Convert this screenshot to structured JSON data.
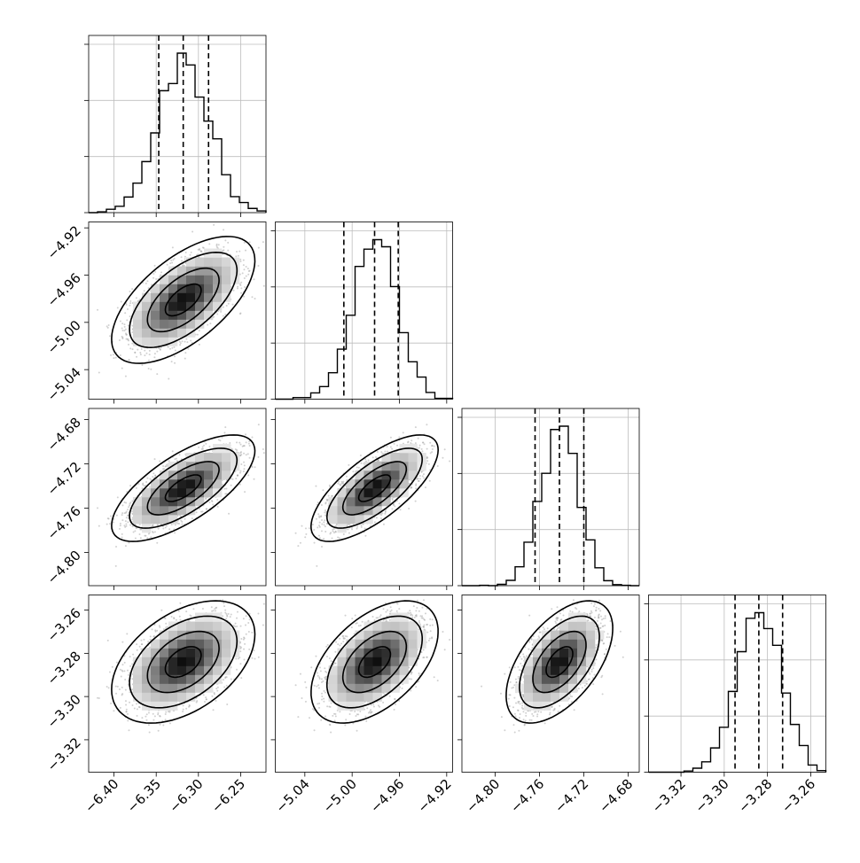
{
  "chart_data": {
    "type": "corner",
    "parameters": [
      {
        "range": [
          -6.43,
          -6.22
        ],
        "ticks": [
          -6.4,
          -6.35,
          -6.3,
          -6.25
        ],
        "tick_labels": [
          "−6.40",
          "−6.35",
          "−6.30",
          "−6.25"
        ],
        "mean": -6.318,
        "sd": 0.03,
        "quantiles": [
          -6.347,
          -6.318,
          -6.288
        ]
      },
      {
        "range": [
          -5.065,
          -4.915
        ],
        "ticks": [
          -5.04,
          -5.0,
          -4.96,
          -4.92
        ],
        "tick_labels": [
          "−5.04",
          "−5.00",
          "−4.96",
          "−4.92"
        ],
        "mean": -4.981,
        "sd": 0.019,
        "quantiles": [
          -5.007,
          -4.981,
          -4.961
        ]
      },
      {
        "range": [
          -4.83,
          -4.67
        ],
        "ticks": [
          -4.8,
          -4.76,
          -4.72,
          -4.68
        ],
        "tick_labels": [
          "−4.80",
          "−4.76",
          "−4.72",
          "−4.68"
        ],
        "mean": -4.742,
        "sd": 0.017,
        "quantiles": [
          -4.764,
          -4.742,
          -4.72
        ]
      },
      {
        "range": [
          -3.335,
          -3.253
        ],
        "ticks": [
          -3.32,
          -3.3,
          -3.28,
          -3.26
        ],
        "tick_labels": [
          "−3.32",
          "−3.30",
          "−3.28",
          "−3.26"
        ],
        "mean": -3.284,
        "sd": 0.01,
        "quantiles": [
          -3.295,
          -3.284,
          -3.273
        ]
      }
    ],
    "correlations": [
      [
        1,
        0.62,
        0.7,
        0.45
      ],
      [
        0.62,
        1,
        0.72,
        0.5
      ],
      [
        0.7,
        0.72,
        1,
        0.55
      ],
      [
        0.45,
        0.5,
        0.55,
        1
      ]
    ],
    "contour_levels_sigma": [
      0.5,
      1.0,
      1.5,
      2.0
    ],
    "grid": true,
    "line_color": "#000000",
    "sample_color": "#9a9a9a"
  }
}
